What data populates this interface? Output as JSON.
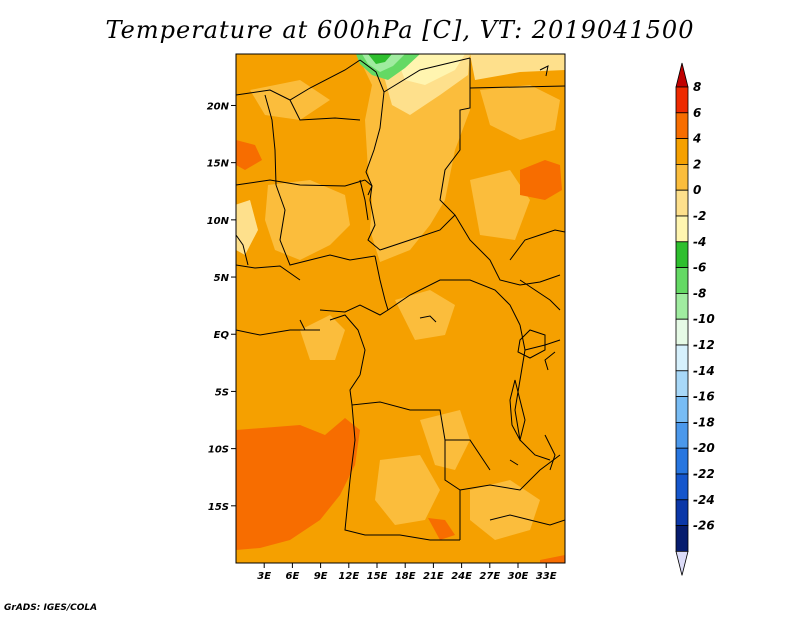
{
  "title": "Temperature at 600hPa [C], VT: 2019041500",
  "footer": "GrADS: IGES/COLA",
  "map": {
    "lon_range": [
      0,
      35
    ],
    "lat_range": [
      -20,
      24.5
    ],
    "lon_ticks": [
      {
        "value": 3,
        "label": "3E"
      },
      {
        "value": 6,
        "label": "6E"
      },
      {
        "value": 9,
        "label": "9E"
      },
      {
        "value": 12,
        "label": "12E"
      },
      {
        "value": 15,
        "label": "15E"
      },
      {
        "value": 18,
        "label": "18E"
      },
      {
        "value": 21,
        "label": "21E"
      },
      {
        "value": 24,
        "label": "24E"
      },
      {
        "value": 27,
        "label": "27E"
      },
      {
        "value": 30,
        "label": "30E"
      },
      {
        "value": 33,
        "label": "33E"
      }
    ],
    "lat_ticks": [
      {
        "value": 20,
        "label": "20N"
      },
      {
        "value": 15,
        "label": "15N"
      },
      {
        "value": 10,
        "label": "10N"
      },
      {
        "value": 5,
        "label": "5N"
      },
      {
        "value": 0,
        "label": "EQ"
      },
      {
        "value": -5,
        "label": "5S"
      },
      {
        "value": -10,
        "label": "10S"
      },
      {
        "value": -15,
        "label": "15S"
      }
    ],
    "base_color": "#f5a000"
  },
  "colorbar": {
    "labels": [
      "8",
      "6",
      "4",
      "2",
      "0",
      "-2",
      "-4",
      "-6",
      "-8",
      "-10",
      "-12",
      "-14",
      "-16",
      "-18",
      "-20",
      "-22",
      "-24",
      "-26"
    ],
    "colors": [
      "#c00000",
      "#ee2a00",
      "#f76d00",
      "#f5a000",
      "#fbbd3c",
      "#fee08c",
      "#fff5b0",
      "#2ebf2e",
      "#64d964",
      "#a0eca0",
      "#e6fae6",
      "#d6f0fc",
      "#a8d8f8",
      "#78bcf4",
      "#4b98eb",
      "#2776e0",
      "#1556cc",
      "#0a37a8",
      "#061c6e"
    ],
    "low_color": "#dcdcf8"
  }
}
